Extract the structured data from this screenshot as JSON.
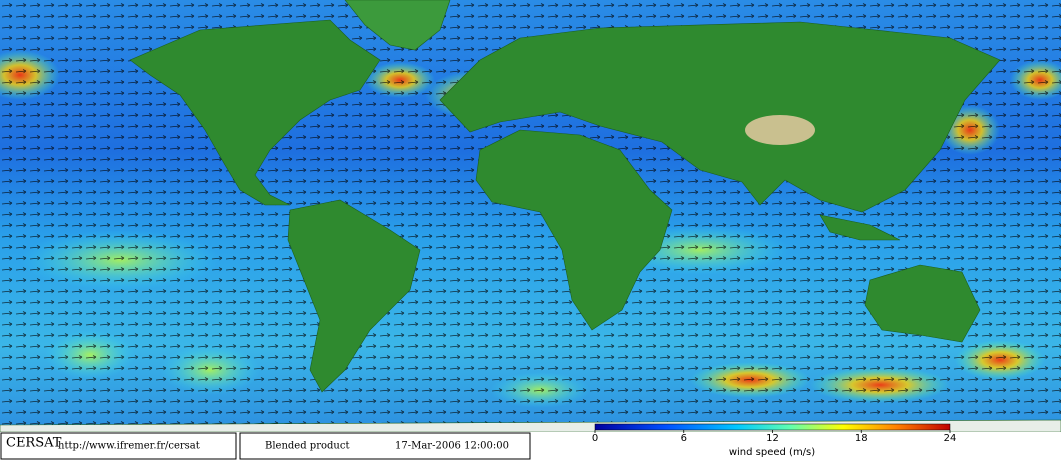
{
  "footer": {
    "logo": "CERSAT",
    "url": "http://www.ifremer.fr/cersat",
    "product": "Blended product",
    "date": "17-Mar-2006 12:00:00"
  },
  "colorbar": {
    "label": "wind speed (m/s)",
    "lim": [
      0,
      24
    ],
    "ticks": [
      0,
      6,
      12,
      18,
      24
    ]
  }
}
